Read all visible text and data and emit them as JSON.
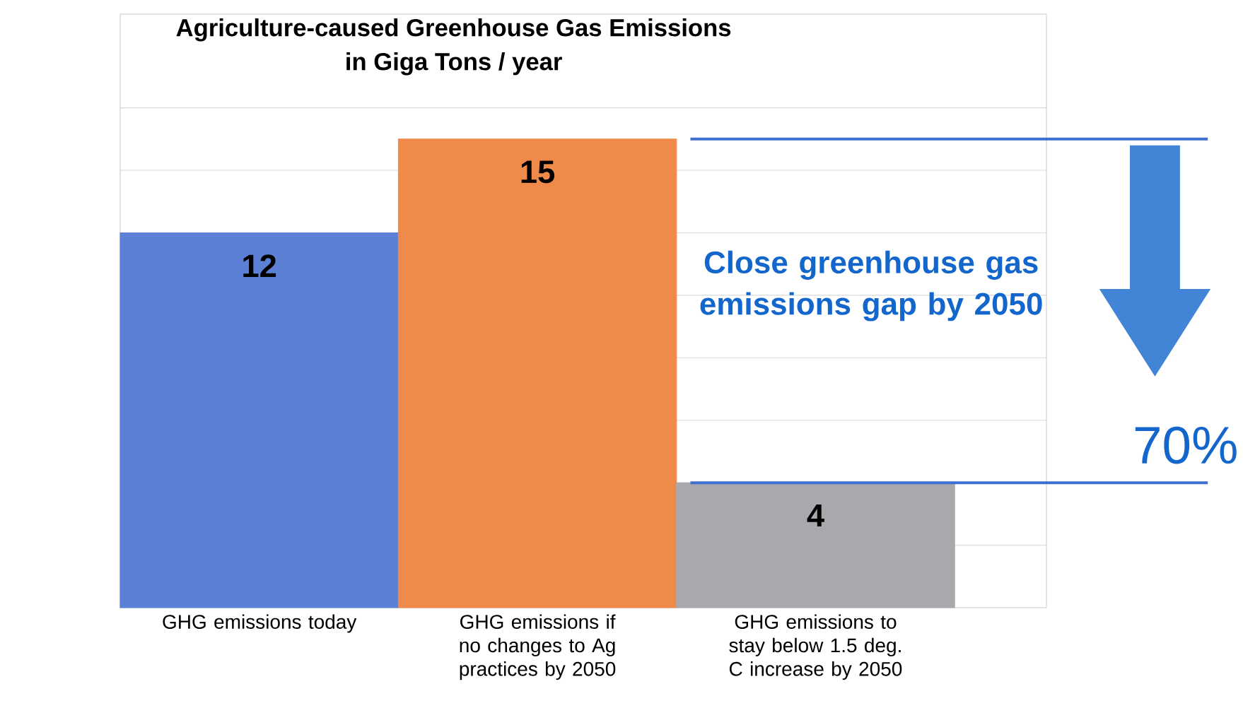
{
  "chart_data": {
    "type": "bar",
    "title": "Agriculture-caused Greenhouse Gas Emissions\nin Giga Tons / year",
    "categories": [
      "GHG emissions today",
      "GHG emissions if no changes to Ag practices by 2050",
      "GHG emissions to stay below 1.5 deg. C increase by 2050"
    ],
    "values": [
      12,
      15,
      4
    ],
    "colors": [
      "#5b80d6",
      "#f08a4b",
      "#a9a8ad"
    ],
    "data_labels": true,
    "ylim": [
      0,
      19
    ],
    "yticks": [
      {
        "value": 2,
        "label": null
      },
      {
        "value": 4,
        "label": null
      },
      {
        "value": 6,
        "label": null
      },
      {
        "value": 8,
        "label": null
      },
      {
        "value": 10,
        "label": null
      },
      {
        "value": 12,
        "label": null
      },
      {
        "value": 14,
        "label": null
      },
      {
        "value": 16,
        "label": null
      }
    ],
    "tick_labels": "x",
    "grid": "y",
    "ref_lines": [
      {
        "axis": "y",
        "value": 15,
        "color": "#3f6fd0"
      },
      {
        "axis": "y",
        "value": 4,
        "color": "#3f6fd0"
      }
    ],
    "annotations": [
      "Close greenhouse gas emissions gap by 2050",
      "70%"
    ]
  }
}
